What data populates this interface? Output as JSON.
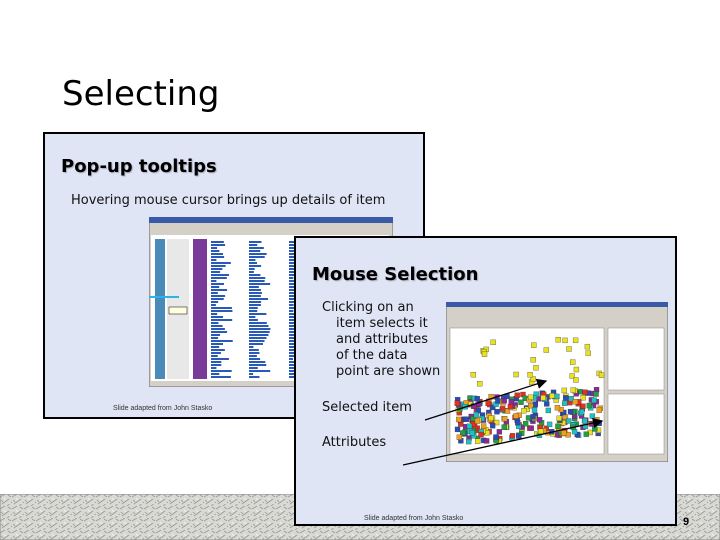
{
  "title": "Selecting",
  "slide_left": {
    "heading": "Pop-up tooltips",
    "text": "Hovering mouse cursor brings up details of item",
    "credit": "Slide adapted from John Stasko"
  },
  "slide_right": {
    "heading": "Mouse Selection",
    "description": [
      "Clicking on an",
      "item selects it",
      "and attributes",
      "of the data",
      "point are shown"
    ],
    "labels": [
      "Selected item",
      "Attributes"
    ],
    "credit": "Slide adapted from John Stasko"
  },
  "page_number": "9"
}
